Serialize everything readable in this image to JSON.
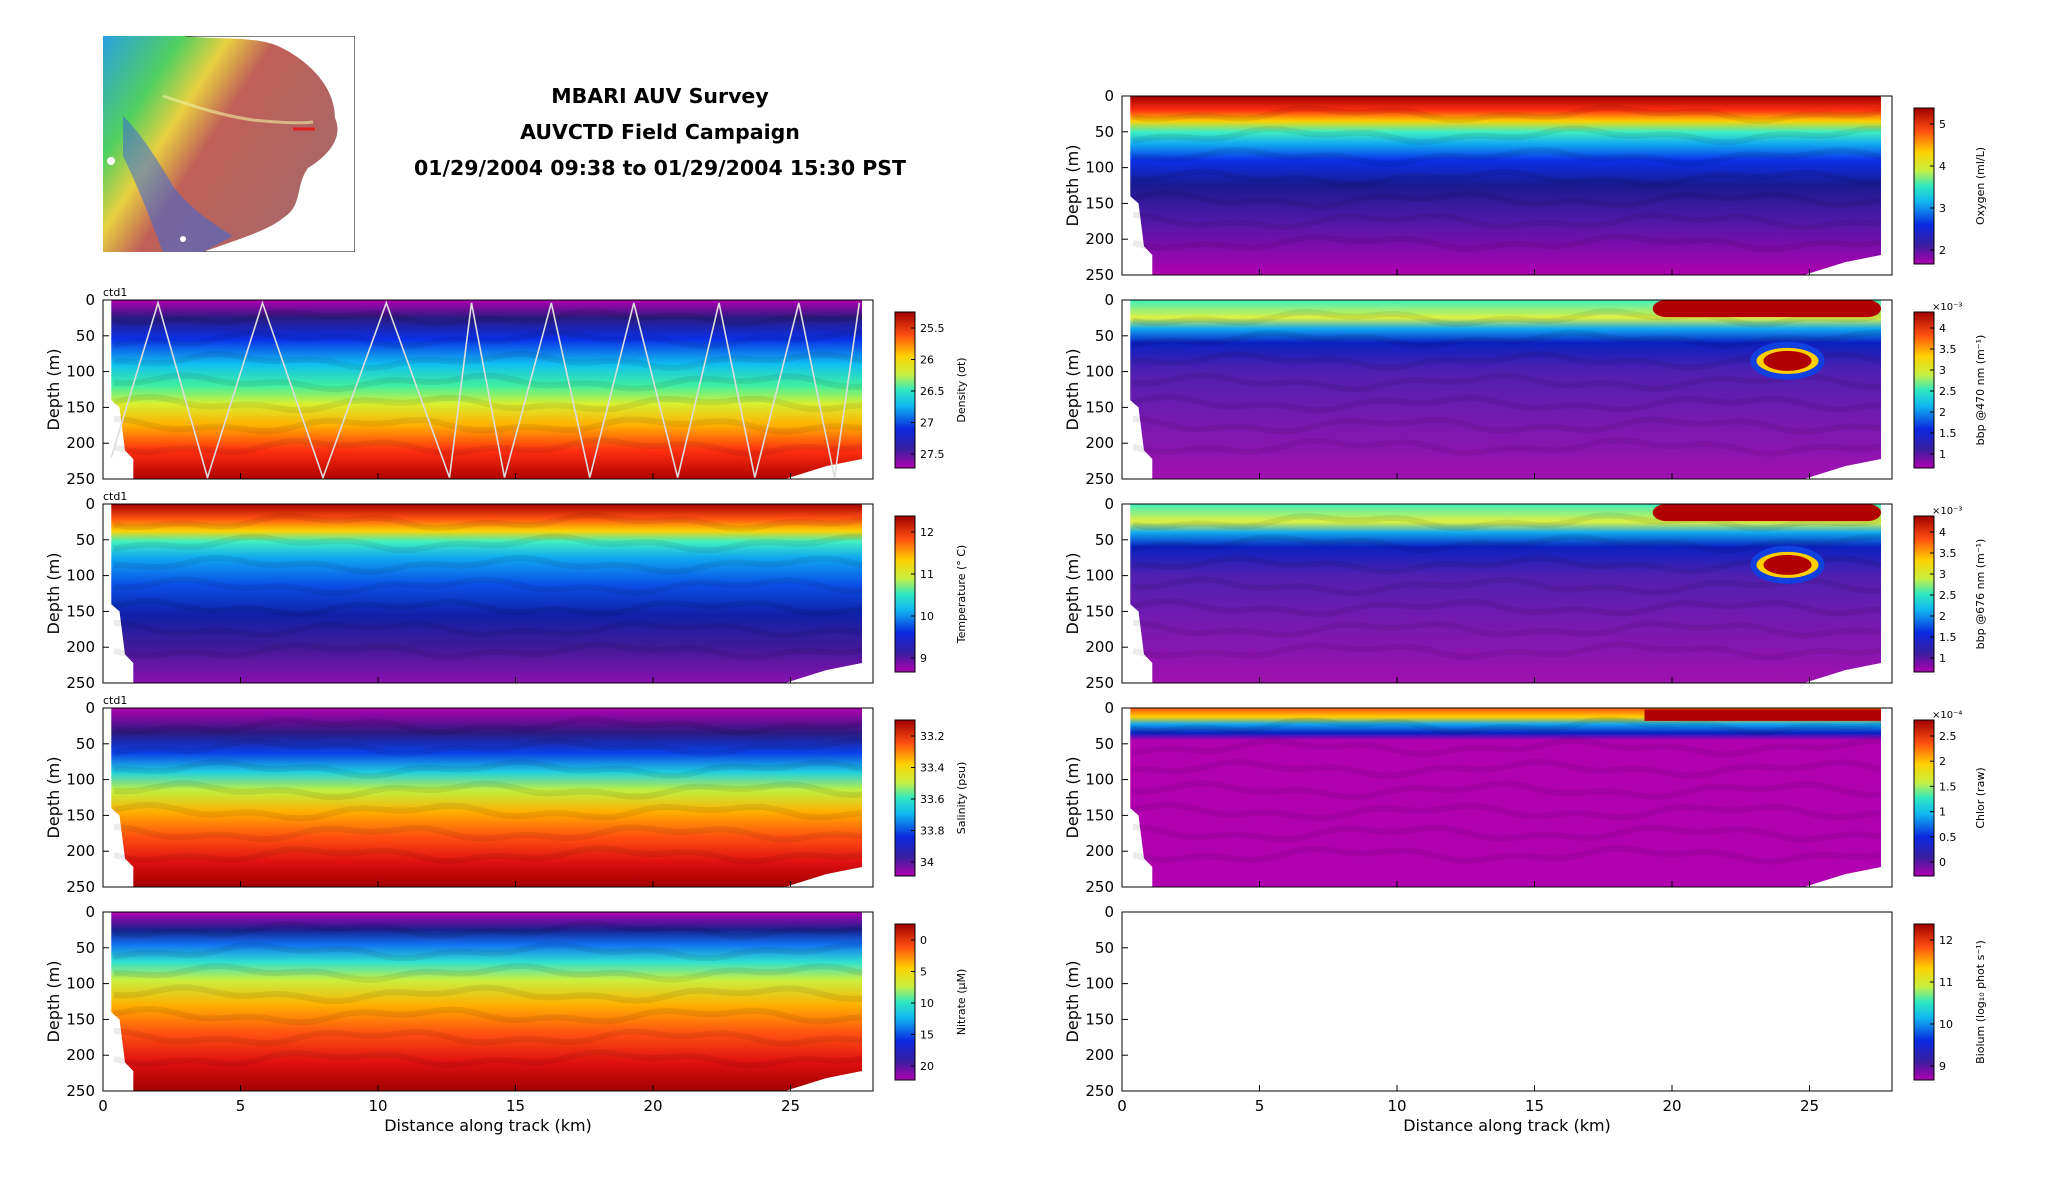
{
  "title": {
    "line1": "MBARI AUV Survey",
    "line2": "AUVCTD Field Campaign",
    "line3": "01/29/2004 09:38 to 01/29/2004 15:30 PST"
  },
  "map": {
    "description_icon": "bathymetry-map-icon"
  },
  "colors": {
    "axis": "#000000",
    "track": "#dddddd",
    "empty": "#ffffff"
  },
  "common": {
    "ylabel": "Depth (m)",
    "xlabel": "Distance along track (km)",
    "x_ticks": [
      "0",
      "5",
      "10",
      "15",
      "20",
      "25"
    ],
    "y_ticks": [
      "0",
      "50",
      "100",
      "150",
      "200",
      "250"
    ],
    "xlim": [
      0,
      28
    ],
    "ylim": [
      0,
      250
    ],
    "panel_tag": "ctd1"
  },
  "chart_data": [
    {
      "id": "density",
      "type": "heatmap",
      "title": "",
      "column": "left",
      "row": 0,
      "tag": "ctd1",
      "colorbar_label": "Density (σt)",
      "colorbar_ticks": [
        "25.5",
        "26",
        "26.5",
        "27",
        "27.5"
      ],
      "colorbar_exp": "",
      "xlim": [
        0,
        28
      ],
      "ylim": [
        0,
        250
      ],
      "track_overlay": true,
      "track_turns_km": [
        0.3,
        2.0,
        3.8,
        5.8,
        8.0,
        10.3,
        12.6,
        13.4,
        14.6,
        16.3,
        17.7,
        19.3,
        20.9,
        22.4,
        23.7,
        25.3,
        26.6,
        27.5
      ]
    },
    {
      "id": "temperature",
      "type": "heatmap",
      "title": "",
      "column": "left",
      "row": 1,
      "tag": "ctd1",
      "colorbar_label": "Temperature (° C)",
      "colorbar_ticks": [
        "12",
        "11",
        "10",
        "9"
      ],
      "colorbar_exp": "",
      "xlim": [
        0,
        28
      ],
      "ylim": [
        0,
        250
      ]
    },
    {
      "id": "salinity",
      "type": "heatmap",
      "title": "",
      "column": "left",
      "row": 2,
      "tag": "ctd1",
      "colorbar_label": "Salinity (psu)",
      "colorbar_ticks": [
        "33.2",
        "33.4",
        "33.6",
        "33.8",
        "34"
      ],
      "colorbar_exp": "",
      "xlim": [
        0,
        28
      ],
      "ylim": [
        0,
        250
      ]
    },
    {
      "id": "nitrate",
      "type": "heatmap",
      "title": "",
      "column": "left",
      "row": 3,
      "tag": "",
      "colorbar_label": "Nitrate (μM)",
      "colorbar_ticks": [
        "0",
        "5",
        "10",
        "15",
        "20"
      ],
      "colorbar_exp": "",
      "xlim": [
        0,
        28
      ],
      "ylim": [
        0,
        250
      ]
    },
    {
      "id": "oxygen",
      "type": "heatmap",
      "title": "",
      "column": "right",
      "row": -1,
      "tag": "",
      "colorbar_label": "Oxygen (ml/L)",
      "colorbar_ticks": [
        "5",
        "4",
        "3",
        "2"
      ],
      "colorbar_exp": "",
      "xlim": [
        0,
        28
      ],
      "ylim": [
        0,
        250
      ]
    },
    {
      "id": "bbp470",
      "type": "heatmap",
      "title": "",
      "column": "right",
      "row": 0,
      "tag": "",
      "colorbar_label": "bbp @470 nm (m⁻¹)",
      "colorbar_ticks": [
        "4",
        "3.5",
        "3",
        "2.5",
        "2",
        "1.5",
        "1"
      ],
      "colorbar_exp": "×10⁻³",
      "xlim": [
        0,
        28
      ],
      "ylim": [
        0,
        250
      ]
    },
    {
      "id": "bbp676",
      "type": "heatmap",
      "title": "",
      "column": "right",
      "row": 1,
      "tag": "",
      "colorbar_label": "bbp @676 nm (m⁻¹)",
      "colorbar_ticks": [
        "4",
        "3.5",
        "3",
        "2.5",
        "2",
        "1.5",
        "1"
      ],
      "colorbar_exp": "×10⁻³",
      "xlim": [
        0,
        28
      ],
      "ylim": [
        0,
        250
      ]
    },
    {
      "id": "chlor",
      "type": "heatmap",
      "title": "",
      "column": "right",
      "row": 2,
      "tag": "",
      "colorbar_label": "Chlor (raw)",
      "colorbar_ticks": [
        "2.5",
        "2",
        "1.5",
        "1",
        "0.5",
        "0"
      ],
      "colorbar_exp": "×10⁻⁴",
      "xlim": [
        0,
        28
      ],
      "ylim": [
        0,
        250
      ]
    },
    {
      "id": "biolum",
      "type": "heatmap",
      "title": "",
      "column": "right",
      "row": 3,
      "tag": "",
      "colorbar_label": "Biolum (log₁₀ phot s⁻¹)",
      "colorbar_ticks": [
        "12",
        "11",
        "10",
        "9"
      ],
      "colorbar_exp": "",
      "xlim": [
        0,
        28
      ],
      "ylim": [
        0,
        250
      ],
      "empty": true
    }
  ]
}
